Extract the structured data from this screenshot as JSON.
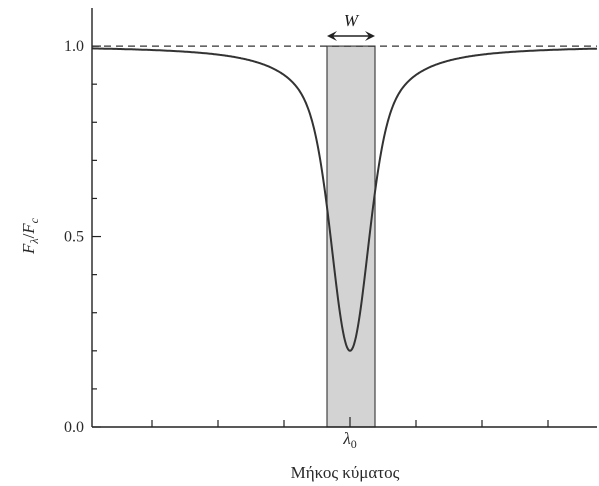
{
  "chart_data": {
    "type": "line",
    "title": "",
    "xlabel": "Μήκος κύματος",
    "ylabel_parts": {
      "f1": "F",
      "sub1": "λ",
      "slash": "/",
      "f2": "F",
      "sub2": "c"
    },
    "ylim": [
      0,
      1.1
    ],
    "xlim": [
      -8,
      7
    ],
    "y_ticks": [
      {
        "value": 0.0,
        "label": "0.0"
      },
      {
        "value": 0.5,
        "label": "0.5"
      },
      {
        "value": 1.0,
        "label": "1.0"
      }
    ],
    "x_tick_label": {
      "text": "λ",
      "subscript": "0"
    },
    "continuum_level": 1.0,
    "line_center": 0,
    "line_depth": 0.8,
    "equivalent_width_band": {
      "x0": -0.6,
      "x1": 0.6,
      "label": "W"
    },
    "series": [
      {
        "style": "solid",
        "profile": "absorption"
      },
      {
        "style": "dashed",
        "profile": "continuum"
      }
    ]
  },
  "colors": {
    "background": "#ffffff",
    "axis": "#222222",
    "curve": "#333333",
    "band_fill": "#d3d3d3",
    "band_edge": "#444444",
    "text": "#2a2a2a"
  }
}
